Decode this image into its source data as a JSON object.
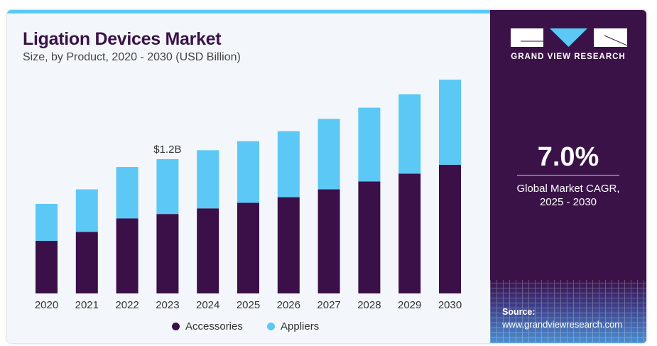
{
  "header": {
    "title": "Ligation Devices Market",
    "subtitle": "Size, by Product, 2020 - 2030 (USD Billion)"
  },
  "sidebar": {
    "brand": "GRAND VIEW RESEARCH",
    "cagr_value": "7.0%",
    "cagr_label_1": "Global Market CAGR,",
    "cagr_label_2": "2025 - 2030",
    "source_label": "Source:",
    "source_url": "www.grandviewresearch.com"
  },
  "colors": {
    "accessories": "#3b0f47",
    "appliers": "#5bc8f5",
    "panel": "#3a1248",
    "accent": "#5bc8f5"
  },
  "chart_data": {
    "type": "bar",
    "stacked": true,
    "title": "Ligation Devices Market",
    "subtitle": "Size, by Product, 2020 - 2030 (USD Billion)",
    "categories": [
      "2020",
      "2021",
      "2022",
      "2023",
      "2024",
      "2025",
      "2026",
      "2027",
      "2028",
      "2029",
      "2030"
    ],
    "series": [
      {
        "name": "Accessories",
        "color": "#3b0f47",
        "values": [
          0.47,
          0.55,
          0.67,
          0.71,
          0.76,
          0.81,
          0.86,
          0.93,
          1.0,
          1.07,
          1.15
        ]
      },
      {
        "name": "Appliers",
        "color": "#5bc8f5",
        "values": [
          0.33,
          0.38,
          0.46,
          0.49,
          0.52,
          0.55,
          0.59,
          0.63,
          0.66,
          0.71,
          0.76
        ]
      }
    ],
    "annotations": [
      {
        "category": "2023",
        "text": "$1.2B"
      }
    ],
    "ylim": [
      0,
      2.0
    ],
    "grid": false,
    "legend": "bottom"
  }
}
